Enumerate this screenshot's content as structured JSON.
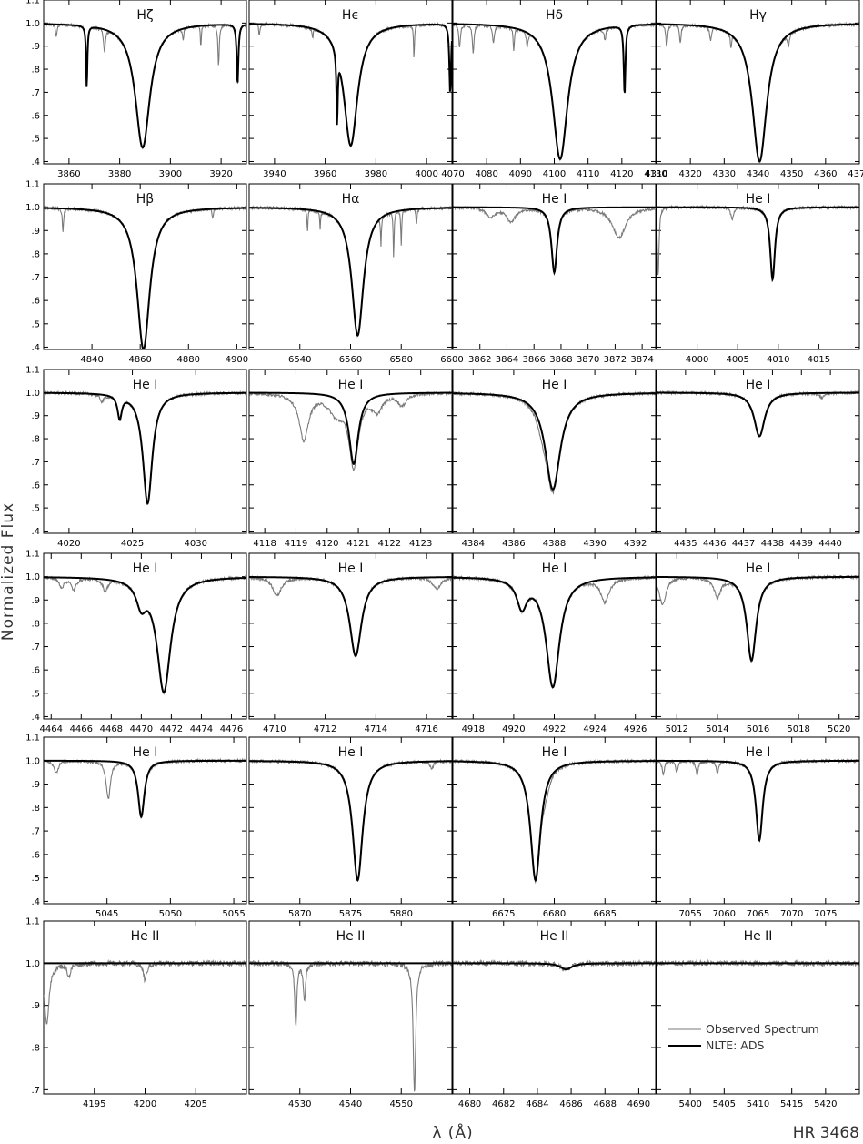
{
  "figure": {
    "ylabel": "Normalized Flux",
    "xlabel": "λ (Å)",
    "star": "HR 3468",
    "legend": [
      {
        "label": "Observed Spectrum",
        "style": "obs"
      },
      {
        "label": "NLTE: ADS",
        "style": "model"
      }
    ],
    "colors": {
      "observed": "#7a7a7a",
      "model": "#000000"
    }
  },
  "chart_data": [
    {
      "type": "line",
      "title": "Hζ",
      "xlim": [
        3850,
        3930
      ],
      "ylim": [
        0.39,
        1.1
      ],
      "xticks": [
        3860,
        3880,
        3900,
        3920
      ],
      "yticks": [
        0.4,
        0.5,
        0.6,
        0.7,
        0.8,
        0.9,
        1.0,
        1.1
      ],
      "lines": [
        {
          "c": 3889.05,
          "d": 0.54,
          "w": 3.5
        },
        {
          "c": 3867,
          "d": 0.27,
          "w": 0.3
        },
        {
          "c": 3926.5,
          "d": 0.26,
          "w": 0.4
        }
      ],
      "obs_lines": [
        {
          "c": 3855,
          "d": 0.06,
          "w": 0.3
        },
        {
          "c": 3874,
          "d": 0.1,
          "w": 0.4
        },
        {
          "c": 3905,
          "d": 0.05,
          "w": 0.3
        },
        {
          "c": 3912,
          "d": 0.1,
          "w": 0.2
        },
        {
          "c": 3919,
          "d": 0.18,
          "w": 0.3
        }
      ]
    },
    {
      "type": "line",
      "title": "Hϵ",
      "xlim": [
        3930,
        4010
      ],
      "ylim": [
        0.39,
        1.1
      ],
      "xticks": [
        3940,
        3960,
        3980,
        4000
      ],
      "yticks": [
        0.4,
        0.5,
        0.6,
        0.7,
        0.8,
        0.9,
        1.0,
        1.1
      ],
      "lines": [
        {
          "c": 3970.07,
          "d": 0.53,
          "w": 3.3
        },
        {
          "c": 3964.7,
          "d": 0.3,
          "w": 0.3
        },
        {
          "c": 4009.3,
          "d": 0.3,
          "w": 0.4
        }
      ],
      "obs_lines": [
        {
          "c": 3934,
          "d": 0.05,
          "w": 0.3
        },
        {
          "c": 3955,
          "d": 0.04,
          "w": 0.3
        },
        {
          "c": 3995,
          "d": 0.15,
          "w": 0.2
        }
      ]
    },
    {
      "type": "line",
      "title": "Hδ",
      "xlim": [
        4070,
        4130
      ],
      "ylim": [
        0.39,
        1.1
      ],
      "xticks": [
        4070,
        4080,
        4090,
        4100,
        4110,
        4120,
        4130
      ],
      "yticks": [
        0.4,
        0.5,
        0.6,
        0.7,
        0.8,
        0.9,
        1.0,
        1.1
      ],
      "lines": [
        {
          "c": 4101.74,
          "d": 0.59,
          "w": 2.7
        },
        {
          "c": 4120.8,
          "d": 0.3,
          "w": 0.3
        }
      ],
      "obs_lines": [
        {
          "c": 4072,
          "d": 0.1,
          "w": 0.3
        },
        {
          "c": 4076,
          "d": 0.12,
          "w": 0.3
        },
        {
          "c": 4082,
          "d": 0.08,
          "w": 0.3
        },
        {
          "c": 4088,
          "d": 0.1,
          "w": 0.2
        },
        {
          "c": 4092,
          "d": 0.06,
          "w": 0.3
        },
        {
          "c": 4115,
          "d": 0.05,
          "w": 0.3
        }
      ]
    },
    {
      "type": "line",
      "title": "Hγ",
      "xlim": [
        4310,
        4370
      ],
      "ylim": [
        0.39,
        1.1
      ],
      "xticks": [
        4310,
        4320,
        4330,
        4340,
        4350,
        4360,
        4370
      ],
      "yticks": [
        0.4,
        0.5,
        0.6,
        0.7,
        0.8,
        0.9,
        1.0,
        1.1
      ],
      "lines": [
        {
          "c": 4340.47,
          "d": 0.6,
          "w": 2.6
        }
      ],
      "obs_lines": [
        {
          "c": 4313,
          "d": 0.1,
          "w": 0.3
        },
        {
          "c": 4317,
          "d": 0.08,
          "w": 0.3
        },
        {
          "c": 4326,
          "d": 0.06,
          "w": 0.3
        },
        {
          "c": 4332,
          "d": 0.06,
          "w": 0.2
        },
        {
          "c": 4349,
          "d": 0.05,
          "w": 0.3
        }
      ]
    },
    {
      "type": "line",
      "title": "Hβ",
      "xlim": [
        4820,
        4904
      ],
      "ylim": [
        0.39,
        1.1
      ],
      "xticks": [
        4840,
        4860,
        4880,
        4900
      ],
      "yticks": [
        0.4,
        0.5,
        0.6,
        0.7,
        0.8,
        0.9,
        1.0,
        1.1
      ],
      "lines": [
        {
          "c": 4861.33,
          "d": 0.61,
          "w": 3.2
        }
      ],
      "obs_lines": [
        {
          "c": 4828,
          "d": 0.1,
          "w": 0.3
        },
        {
          "c": 4890,
          "d": 0.04,
          "w": 0.3
        }
      ]
    },
    {
      "type": "line",
      "title": "Hα",
      "xlim": [
        6520,
        6600
      ],
      "ylim": [
        0.39,
        1.1
      ],
      "xticks": [
        6540,
        6560,
        6580,
        6600
      ],
      "yticks": [
        0.4,
        0.5,
        0.6,
        0.7,
        0.8,
        0.9,
        1.0,
        1.1
      ],
      "lines": [
        {
          "c": 6562.8,
          "d": 0.55,
          "w": 2.8
        }
      ],
      "obs_lines": [
        {
          "c": 6543,
          "d": 0.1,
          "w": 0.2
        },
        {
          "c": 6548,
          "d": 0.08,
          "w": 0.2
        },
        {
          "c": 6572,
          "d": 0.12,
          "w": 0.2
        },
        {
          "c": 6577,
          "d": 0.2,
          "w": 0.2
        },
        {
          "c": 6580,
          "d": 0.15,
          "w": 0.2
        },
        {
          "c": 6586,
          "d": 0.08,
          "w": 0.2
        }
      ]
    },
    {
      "type": "line",
      "title": "He I",
      "xlim": [
        3860,
        3875
      ],
      "ylim": [
        0.39,
        1.1
      ],
      "xticks": [
        3862,
        3864,
        3866,
        3868,
        3870,
        3872,
        3874
      ],
      "yticks": [
        0.4,
        0.5,
        0.6,
        0.7,
        0.8,
        0.9,
        1.0,
        1.1
      ],
      "lines": [
        {
          "c": 3867.5,
          "d": 0.28,
          "w": 0.25
        }
      ],
      "obs_lines": [
        {
          "c": 3862.8,
          "d": 0.04,
          "w": 0.4
        },
        {
          "c": 3864.3,
          "d": 0.06,
          "w": 0.4
        },
        {
          "c": 3872.3,
          "d": 0.13,
          "w": 0.6
        }
      ]
    },
    {
      "type": "line",
      "title": "He I",
      "xlim": [
        3995,
        4020
      ],
      "ylim": [
        0.39,
        1.1
      ],
      "xticks": [
        4000,
        4005,
        4010,
        4015
      ],
      "yticks": [
        0.4,
        0.5,
        0.6,
        0.7,
        0.8,
        0.9,
        1.0,
        1.1
      ],
      "lines": [
        {
          "c": 4009.3,
          "d": 0.31,
          "w": 0.35
        }
      ],
      "obs_lines": [
        {
          "c": 3995.2,
          "d": 0.3,
          "w": 0.12
        },
        {
          "c": 4004.3,
          "d": 0.05,
          "w": 0.2
        }
      ]
    },
    {
      "type": "line",
      "title": "He I",
      "xlim": [
        4018,
        4034
      ],
      "ylim": [
        0.39,
        1.1
      ],
      "xticks": [
        4020,
        4025,
        4030
      ],
      "yticks": [
        0.4,
        0.5,
        0.6,
        0.7,
        0.8,
        0.9,
        1.0,
        1.1
      ],
      "lines": [
        {
          "c": 4026.2,
          "d": 0.48,
          "w": 0.45
        },
        {
          "c": 4024.0,
          "d": 0.1,
          "w": 0.2
        }
      ],
      "obs_lines": [
        {
          "c": 4022.6,
          "d": 0.03,
          "w": 0.2
        }
      ]
    },
    {
      "type": "line",
      "title": "He I",
      "xlim": [
        4117.5,
        4124
      ],
      "ylim": [
        0.39,
        1.1
      ],
      "xticks": [
        4118,
        4119,
        4120,
        4121,
        4122,
        4123
      ],
      "yticks": [
        0.4,
        0.5,
        0.6,
        0.7,
        0.8,
        0.9,
        1.0,
        1.1
      ],
      "lines": [
        {
          "c": 4120.85,
          "d": 0.31,
          "w": 0.18
        }
      ],
      "obs_lines": [
        {
          "c": 4119.25,
          "d": 0.2,
          "w": 0.18
        },
        {
          "c": 4120.3,
          "d": 0.08,
          "w": 0.3
        },
        {
          "c": 4121.6,
          "d": 0.07,
          "w": 0.2
        },
        {
          "c": 4122.4,
          "d": 0.05,
          "w": 0.15
        }
      ]
    },
    {
      "type": "line",
      "title": "He I",
      "xlim": [
        4383,
        4393
      ],
      "ylim": [
        0.39,
        1.1
      ],
      "xticks": [
        4384,
        4386,
        4388,
        4390,
        4392
      ],
      "yticks": [
        0.4,
        0.5,
        0.6,
        0.7,
        0.8,
        0.9,
        1.0,
        1.1
      ],
      "lines": [
        {
          "c": 4387.93,
          "d": 0.42,
          "w": 0.45
        }
      ],
      "obs_lines": [
        {
          "c": 4387.4,
          "d": 0.05,
          "w": 0.3
        }
      ]
    },
    {
      "type": "line",
      "title": "He I",
      "xlim": [
        4434,
        4441
      ],
      "ylim": [
        0.39,
        1.1
      ],
      "xticks": [
        4435,
        4436,
        4437,
        4438,
        4439,
        4440
      ],
      "yticks": [
        0.4,
        0.5,
        0.6,
        0.7,
        0.8,
        0.9,
        1.0,
        1.1
      ],
      "lines": [
        {
          "c": 4437.55,
          "d": 0.19,
          "w": 0.22
        }
      ],
      "obs_lines": [
        {
          "c": 4439.7,
          "d": 0.02,
          "w": 0.1
        }
      ]
    },
    {
      "type": "line",
      "title": "He I",
      "xlim": [
        4463.5,
        4477
      ],
      "ylim": [
        0.39,
        1.1
      ],
      "xticks": [
        4464,
        4466,
        4468,
        4470,
        4472,
        4474,
        4476
      ],
      "yticks": [
        0.4,
        0.5,
        0.6,
        0.7,
        0.8,
        0.9,
        1.0,
        1.1
      ],
      "lines": [
        {
          "c": 4471.5,
          "d": 0.49,
          "w": 0.55
        },
        {
          "c": 4470.0,
          "d": 0.1,
          "w": 0.4
        }
      ],
      "obs_lines": [
        {
          "c": 4464.7,
          "d": 0.04,
          "w": 0.2
        },
        {
          "c": 4465.5,
          "d": 0.05,
          "w": 0.2
        },
        {
          "c": 4467.6,
          "d": 0.05,
          "w": 0.2
        }
      ]
    },
    {
      "type": "line",
      "title": "He I",
      "xlim": [
        4709,
        4717
      ],
      "ylim": [
        0.39,
        1.1
      ],
      "xticks": [
        4710,
        4712,
        4714,
        4716
      ],
      "yticks": [
        0.4,
        0.5,
        0.6,
        0.7,
        0.8,
        0.9,
        1.0,
        1.1
      ],
      "lines": [
        {
          "c": 4713.2,
          "d": 0.34,
          "w": 0.28
        }
      ],
      "obs_lines": [
        {
          "c": 4710.1,
          "d": 0.08,
          "w": 0.2
        },
        {
          "c": 4716.4,
          "d": 0.05,
          "w": 0.2
        }
      ]
    },
    {
      "type": "line",
      "title": "He I",
      "xlim": [
        4917,
        4927
      ],
      "ylim": [
        0.39,
        1.1
      ],
      "xticks": [
        4918,
        4920,
        4922,
        4924,
        4926
      ],
      "yticks": [
        0.4,
        0.5,
        0.6,
        0.7,
        0.8,
        0.9,
        1.0,
        1.1
      ],
      "lines": [
        {
          "c": 4921.93,
          "d": 0.47,
          "w": 0.4
        },
        {
          "c": 4920.4,
          "d": 0.12,
          "w": 0.3
        }
      ],
      "obs_lines": [
        {
          "c": 4924.5,
          "d": 0.1,
          "w": 0.25
        }
      ]
    },
    {
      "type": "line",
      "title": "He I",
      "xlim": [
        5011,
        5021
      ],
      "ylim": [
        0.39,
        1.1
      ],
      "xticks": [
        5012,
        5014,
        5016,
        5018,
        5020
      ],
      "yticks": [
        0.4,
        0.5,
        0.6,
        0.7,
        0.8,
        0.9,
        1.0,
        1.1
      ],
      "lines": [
        {
          "c": 5015.68,
          "d": 0.36,
          "w": 0.28
        }
      ],
      "obs_lines": [
        {
          "c": 5011.3,
          "d": 0.12,
          "w": 0.2
        },
        {
          "c": 5014.0,
          "d": 0.08,
          "w": 0.2
        }
      ]
    },
    {
      "type": "line",
      "title": "He I",
      "xlim": [
        5040,
        5056
      ],
      "ylim": [
        0.39,
        1.1
      ],
      "xticks": [
        5045,
        5050,
        5055
      ],
      "yticks": [
        0.4,
        0.5,
        0.6,
        0.7,
        0.8,
        0.9,
        1.0,
        1.1
      ],
      "lines": [
        {
          "c": 5047.7,
          "d": 0.24,
          "w": 0.3
        }
      ],
      "obs_lines": [
        {
          "c": 5041,
          "d": 0.05,
          "w": 0.2
        },
        {
          "c": 5045.1,
          "d": 0.16,
          "w": 0.2
        }
      ]
    },
    {
      "type": "line",
      "title": "He I",
      "xlim": [
        5865,
        5885
      ],
      "ylim": [
        0.39,
        1.1
      ],
      "xticks": [
        5870,
        5875,
        5880
      ],
      "yticks": [
        0.4,
        0.5,
        0.6,
        0.7,
        0.8,
        0.9,
        1.0,
        1.1
      ],
      "lines": [
        {
          "c": 5875.7,
          "d": 0.51,
          "w": 0.6
        }
      ],
      "obs_lines": [
        {
          "c": 5883,
          "d": 0.03,
          "w": 0.2
        }
      ]
    },
    {
      "type": "line",
      "title": "He I",
      "xlim": [
        6670,
        6690
      ],
      "ylim": [
        0.39,
        1.1
      ],
      "xticks": [
        6675,
        6680,
        6685
      ],
      "yticks": [
        0.4,
        0.5,
        0.6,
        0.7,
        0.8,
        0.9,
        1.0,
        1.1
      ],
      "lines": [
        {
          "c": 6678.15,
          "d": 0.51,
          "w": 0.6
        }
      ],
      "obs_lines": [
        {
          "c": 6679.2,
          "d": 0.05,
          "w": 0.4
        }
      ]
    },
    {
      "type": "line",
      "title": "He I",
      "xlim": [
        7050,
        7080
      ],
      "ylim": [
        0.39,
        1.1
      ],
      "xticks": [
        7055,
        7060,
        7065,
        7070,
        7075
      ],
      "yticks": [
        0.4,
        0.5,
        0.6,
        0.7,
        0.8,
        0.9,
        1.0,
        1.1
      ],
      "lines": [
        {
          "c": 7065.2,
          "d": 0.34,
          "w": 0.6
        }
      ],
      "obs_lines": [
        {
          "c": 7051,
          "d": 0.06,
          "w": 0.2
        },
        {
          "c": 7053,
          "d": 0.05,
          "w": 0.2
        },
        {
          "c": 7056,
          "d": 0.06,
          "w": 0.2
        },
        {
          "c": 7059,
          "d": 0.05,
          "w": 0.2
        }
      ]
    },
    {
      "type": "line",
      "title": "He II",
      "xlim": [
        4190,
        4210
      ],
      "ylim": [
        0.69,
        1.1
      ],
      "xticks": [
        4195,
        4200,
        4205
      ],
      "yticks": [
        0.7,
        0.8,
        0.9,
        1.0,
        1.1
      ],
      "lines": [],
      "obs_lines": [
        {
          "c": 4190.3,
          "d": 0.14,
          "w": 0.3
        },
        {
          "c": 4200.0,
          "d": 0.04,
          "w": 0.2
        },
        {
          "c": 4192.5,
          "d": 0.03,
          "w": 0.2
        }
      ]
    },
    {
      "type": "line",
      "title": "He II",
      "xlim": [
        4520,
        4560
      ],
      "ylim": [
        0.69,
        1.1
      ],
      "xticks": [
        4530,
        4540,
        4550
      ],
      "yticks": [
        0.7,
        0.8,
        0.9,
        1.0,
        1.1
      ],
      "lines": [],
      "obs_lines": [
        {
          "c": 4529.2,
          "d": 0.15,
          "w": 0.25
        },
        {
          "c": 4530.9,
          "d": 0.09,
          "w": 0.25
        },
        {
          "c": 4552.6,
          "d": 0.31,
          "w": 0.3
        }
      ]
    },
    {
      "type": "line",
      "title": "He II",
      "xlim": [
        4679,
        4691
      ],
      "ylim": [
        0.69,
        1.1
      ],
      "xticks": [
        4680,
        4682,
        4684,
        4686,
        4688,
        4690
      ],
      "yticks": [
        0.7,
        0.8,
        0.9,
        1.0,
        1.1
      ],
      "lines": [
        {
          "c": 4685.7,
          "d": 0.015,
          "w": 0.4
        }
      ],
      "obs_lines": []
    },
    {
      "type": "line",
      "title": "He II",
      "xlim": [
        5395,
        5425
      ],
      "ylim": [
        0.69,
        1.1
      ],
      "xticks": [
        5400,
        5405,
        5410,
        5415,
        5420
      ],
      "yticks": [
        0.7,
        0.8,
        0.9,
        1.0,
        1.1
      ],
      "lines": [],
      "obs_lines": []
    }
  ]
}
